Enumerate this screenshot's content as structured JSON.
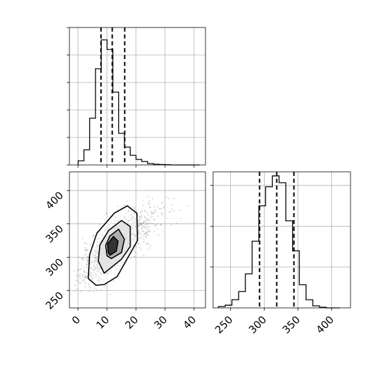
{
  "chart_data": [
    {
      "panel": "top-left",
      "type": "histogram",
      "variable": "x",
      "xlim": [
        -3,
        44
      ],
      "ylim": [
        0,
        1
      ],
      "x_ticks": [
        0,
        10,
        20,
        30,
        40
      ],
      "grid": true,
      "bin_edges": [
        0,
        2,
        4,
        6,
        8,
        10,
        12,
        14,
        16,
        18,
        20,
        22,
        24,
        26,
        28,
        30,
        32,
        34,
        36,
        38,
        40,
        42
      ],
      "counts": [
        0.03,
        0.11,
        0.34,
        0.7,
        0.91,
        0.84,
        0.53,
        0.23,
        0.13,
        0.07,
        0.04,
        0.025,
        0.01,
        0.005,
        0.003,
        0.002,
        0,
        0,
        0,
        0,
        0
      ],
      "quantile_lines": [
        7.9,
        11.8,
        16.1
      ]
    },
    {
      "panel": "bottom-left",
      "type": "scatter",
      "variables": [
        "x",
        "y"
      ],
      "xlim": [
        -3,
        44
      ],
      "ylim": [
        224,
        428
      ],
      "x_ticks": [
        0,
        10,
        20,
        30,
        40
      ],
      "y_ticks": [
        250,
        300,
        350,
        400
      ],
      "x_tick_labels": [
        "0",
        "10",
        "20",
        "30",
        "40"
      ],
      "y_tick_labels": [
        "250",
        "300",
        "350",
        "400"
      ],
      "grid": true,
      "points": {
        "n": 1800,
        "mean": [
          12.3,
          318.5
        ],
        "sd": [
          5.2,
          26.0
        ],
        "correlation": 0.75
      },
      "contours": [
        {
          "level": "outer",
          "path": [
            [
              6.2,
              258
            ],
            [
              9.0,
              259
            ],
            [
              13.5,
              271
            ],
            [
              20.5,
              325
            ],
            [
              20.3,
              366
            ],
            [
              17.0,
              377
            ],
            [
              12.5,
              366
            ],
            [
              6.5,
              336
            ],
            [
              4.0,
              304
            ],
            [
              3.5,
              268
            ],
            [
              6.2,
              258
            ]
          ]
        },
        {
          "level": "middle",
          "path": [
            [
              9.0,
              276
            ],
            [
              15.0,
              297
            ],
            [
              18.0,
              316
            ],
            [
              18.0,
              346
            ],
            [
              15.0,
              355
            ],
            [
              10.5,
              340
            ],
            [
              7.5,
              318
            ],
            [
              7.0,
              294
            ],
            [
              9.0,
              276
            ]
          ]
        },
        {
          "level": "inner",
          "path": [
            [
              11.5,
              298
            ],
            [
              15.0,
              307
            ],
            [
              16.0,
              327
            ],
            [
              14.0,
              342
            ],
            [
              11.0,
              332
            ],
            [
              9.5,
              318
            ],
            [
              10.0,
              302
            ],
            [
              11.5,
              298
            ]
          ]
        },
        {
          "level": "core",
          "path": [
            [
              11.0,
              303
            ],
            [
              13.2,
              309
            ],
            [
              13.8,
              324
            ],
            [
              12.2,
              331
            ],
            [
              10.2,
              320
            ],
            [
              10.4,
              307
            ],
            [
              11.0,
              303
            ]
          ]
        }
      ]
    },
    {
      "panel": "bottom-right",
      "type": "histogram",
      "variable": "y",
      "xlim": [
        224,
        428
      ],
      "ylim": [
        0,
        1
      ],
      "x_ticks": [
        250,
        300,
        350,
        400
      ],
      "x_tick_labels": [
        "250",
        "300",
        "350",
        "400"
      ],
      "grid": true,
      "bin_edges": [
        232,
        242,
        252,
        262,
        272,
        282,
        292,
        302,
        312,
        322,
        332,
        342,
        352,
        362,
        372,
        382,
        392,
        402,
        412
      ],
      "counts": [
        0.01,
        0.02,
        0.06,
        0.12,
        0.25,
        0.49,
        0.75,
        0.89,
        0.97,
        0.92,
        0.64,
        0.42,
        0.17,
        0.06,
        0.015,
        0.005,
        0,
        0
      ],
      "quantile_lines": [
        293,
        318.5,
        344
      ]
    }
  ]
}
